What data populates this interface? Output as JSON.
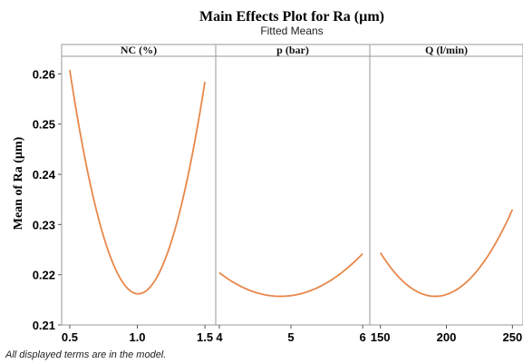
{
  "chart_data": {
    "type": "line",
    "title": "Main Effects Plot for Ra (µm)",
    "subtitle": "Fitted Means",
    "ylabel": "Mean of Ra (µm)",
    "ylim": [
      0.21,
      0.2635
    ],
    "yticks": [
      0.21,
      0.22,
      0.23,
      0.24,
      0.25,
      0.26
    ],
    "line_color": "#e8874a",
    "footnote": "All displayed terms are in the model.",
    "panels": [
      {
        "name": "NC (%)",
        "xlim": [
          0.44,
          1.58
        ],
        "xticks": [
          0.5,
          1.0,
          1.5
        ],
        "xtick_labels": [
          "0.5",
          "1.0",
          "1.5"
        ],
        "curve": {
          "a": 0.1735,
          "h": 1.0068,
          "k": 0.2162
        },
        "x_range": [
          0.5,
          1.5
        ]
      },
      {
        "name": "p (bar)",
        "xlim": [
          3.95,
          6.1
        ],
        "xticks": [
          4,
          5,
          6
        ],
        "xtick_labels": [
          "4",
          "5",
          "6"
        ],
        "curve": {
          "a": 0.00647,
          "h": 4.854,
          "k": 0.2157
        },
        "x_range": [
          4,
          6
        ]
      },
      {
        "name": "Q (l/min)",
        "xlim": [
          142,
          258
        ],
        "xticks": [
          150,
          200,
          250
        ],
        "xtick_labels": [
          "150",
          "200",
          "250"
        ],
        "curve": {
          "a": 5.05e-06,
          "h": 191.5,
          "k": 0.2157
        },
        "x_range": [
          150,
          250
        ]
      }
    ]
  }
}
